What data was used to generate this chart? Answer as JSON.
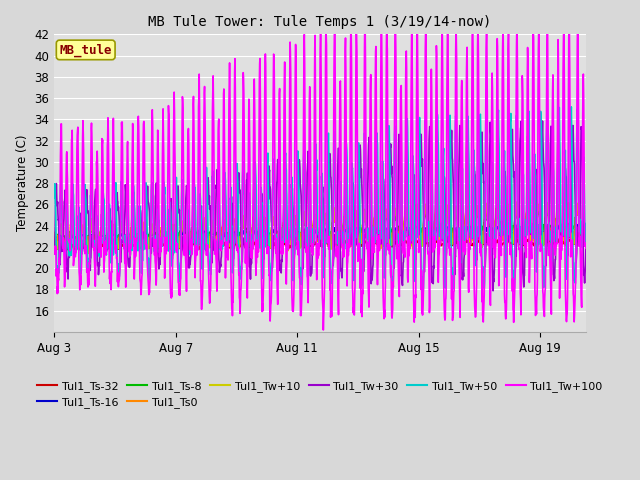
{
  "title": "MB Tule Tower: Tule Temps 1 (3/19/14-now)",
  "ylabel": "Temperature (C)",
  "xlim_days": [
    0,
    17.5
  ],
  "ylim": [
    14,
    42
  ],
  "yticks": [
    16,
    18,
    20,
    22,
    24,
    26,
    28,
    30,
    32,
    34,
    36,
    38,
    40,
    42
  ],
  "xtick_labels": [
    "Aug 3",
    "Aug 7",
    "Aug 11",
    "Aug 15",
    "Aug 19"
  ],
  "xtick_positions": [
    0,
    4,
    8,
    12,
    16
  ],
  "fig_bg_color": "#d8d8d8",
  "plot_bg_color": "#e0e0e0",
  "grid_color": "#ffffff",
  "series": [
    {
      "label": "Tul1_Ts-32",
      "color": "#cc0000",
      "lw": 1.2
    },
    {
      "label": "Tul1_Ts-16",
      "color": "#0000cc",
      "lw": 1.2
    },
    {
      "label": "Tul1_Ts-8",
      "color": "#00bb00",
      "lw": 1.2
    },
    {
      "label": "Tul1_Ts0",
      "color": "#ff8800",
      "lw": 1.2
    },
    {
      "label": "Tul1_Tw+10",
      "color": "#cccc00",
      "lw": 1.2
    },
    {
      "label": "Tul1_Tw+30",
      "color": "#9900cc",
      "lw": 1.2
    },
    {
      "label": "Tul1_Tw+50",
      "color": "#00cccc",
      "lw": 1.2
    },
    {
      "label": "Tul1_Tw+100",
      "color": "#ff00ff",
      "lw": 1.2
    }
  ],
  "label_box_text": "MB_tule",
  "label_box_color": "#ffff99",
  "label_box_border": "#999900",
  "label_text_color": "#880000"
}
